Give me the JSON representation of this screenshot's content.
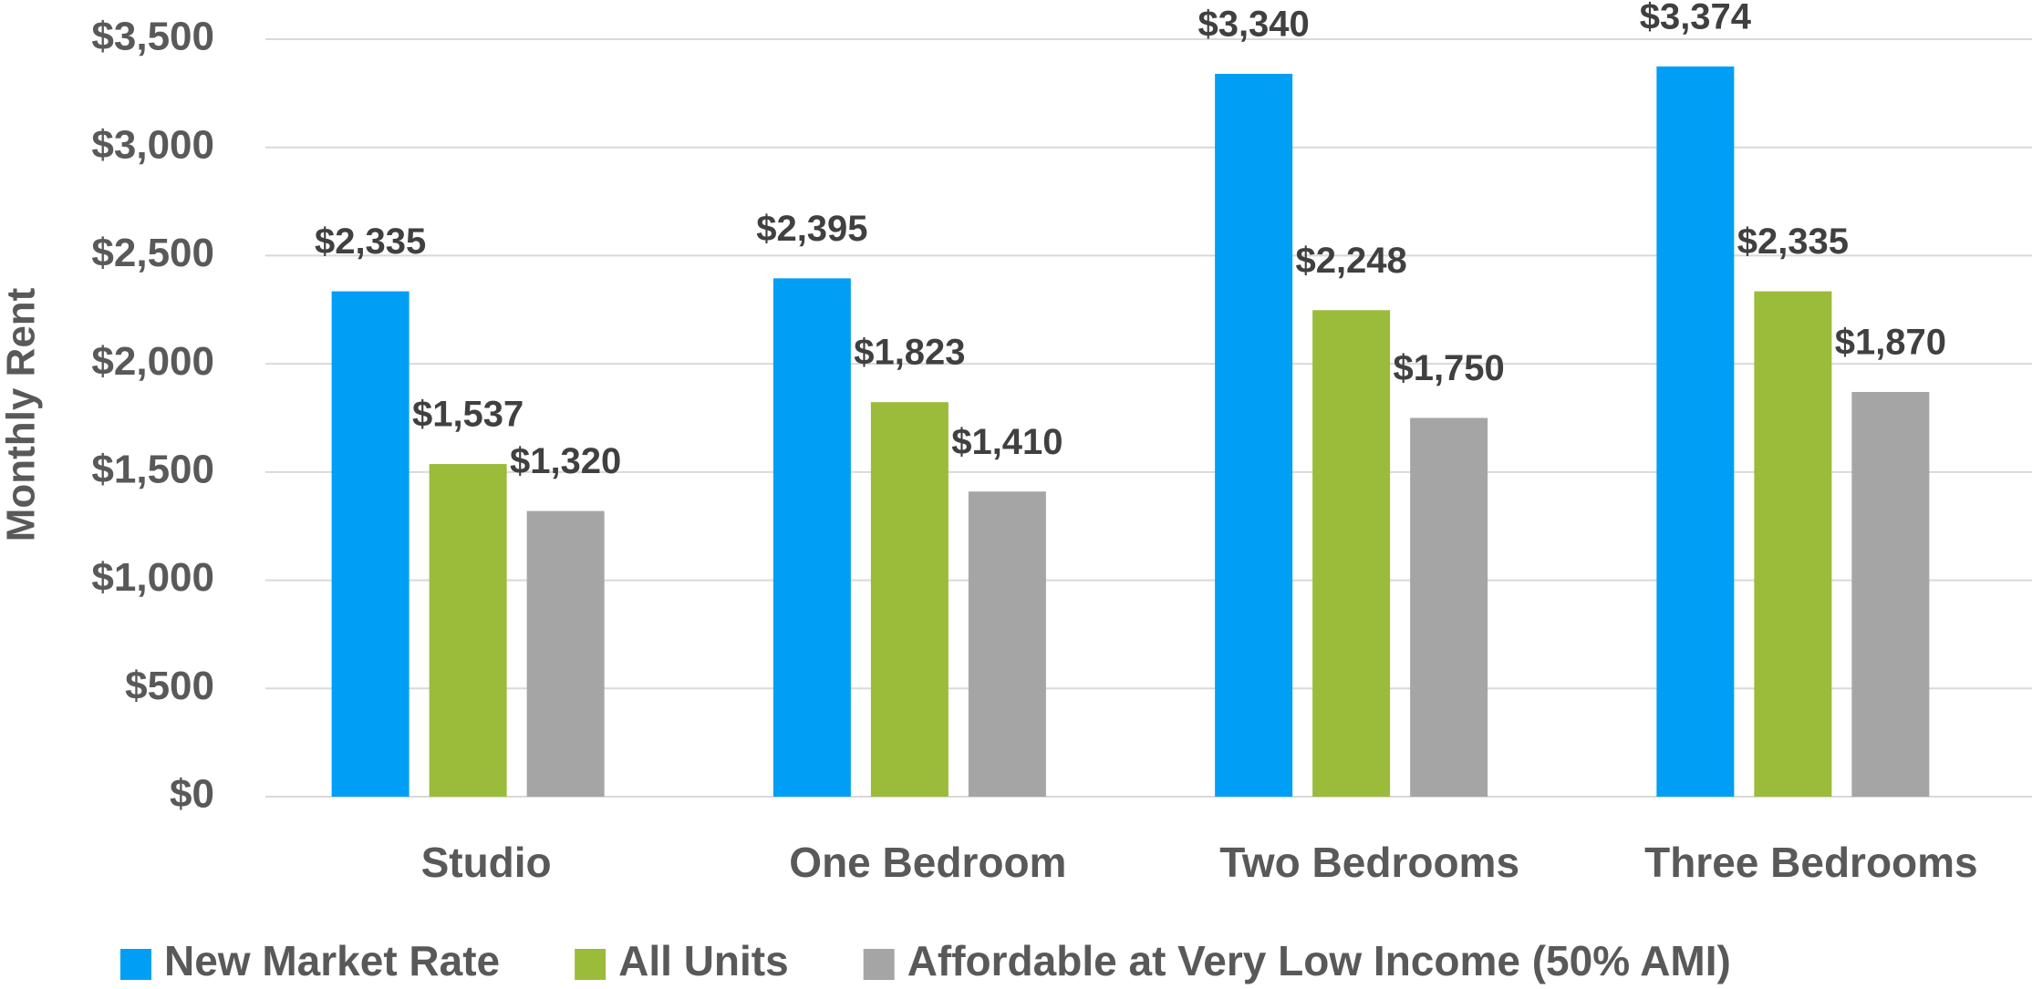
{
  "chart_data": {
    "type": "bar",
    "y_axis_label": "Monthly Rent",
    "categories": [
      "Studio",
      "One Bedroom",
      "Two Bedrooms",
      "Three Bedrooms"
    ],
    "series": [
      {
        "name": "New Market Rate",
        "color": "#009ff5",
        "values": [
          2335,
          2395,
          3340,
          3374
        ],
        "value_labels": [
          "$2,335",
          "$2,395",
          "$3,340",
          "$3,374"
        ]
      },
      {
        "name": "All Units",
        "color": "#9bbb3b",
        "values": [
          1537,
          1823,
          2248,
          2335
        ],
        "value_labels": [
          "$1,537",
          "$1,823",
          "$2,248",
          "$2,335"
        ]
      },
      {
        "name": "Affordable at Very Low Income (50% AMI)",
        "color": "#a5a5a5",
        "values": [
          1320,
          1410,
          1750,
          1870
        ],
        "value_labels": [
          "$1,320",
          "$1,410",
          "$1,750",
          "$1,870"
        ]
      }
    ],
    "ylim": [
      0,
      3500
    ],
    "yticks": [
      {
        "value": 0,
        "label": "$0"
      },
      {
        "value": 500,
        "label": "$500"
      },
      {
        "value": 1000,
        "label": "$1,000"
      },
      {
        "value": 1500,
        "label": "$1,500"
      },
      {
        "value": 2000,
        "label": "$2,000"
      },
      {
        "value": 2500,
        "label": "$2,500"
      },
      {
        "value": 3000,
        "label": "$3,000"
      },
      {
        "value": 3500,
        "label": "$3,500"
      }
    ],
    "grid": true,
    "legend": "bottom"
  }
}
